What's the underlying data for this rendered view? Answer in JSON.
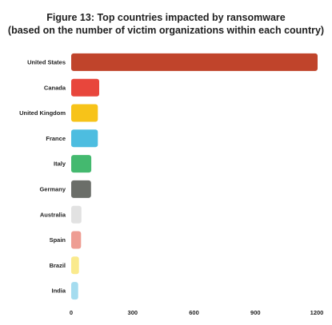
{
  "chart_data": {
    "type": "bar",
    "orientation": "horizontal",
    "title": "Figure 13: Top countries impacted by ransomware",
    "subtitle": "(based on the number of victim organizations within each country)",
    "categories": [
      "United States",
      "Canada",
      "United Kingdom",
      "France",
      "Italy",
      "Germany",
      "Australia",
      "Spain",
      "Brazil",
      "India"
    ],
    "values": [
      1220,
      137,
      130,
      130,
      98,
      97,
      50,
      48,
      38,
      34
    ],
    "colors": [
      "#c0442b",
      "#e8463c",
      "#f7c319",
      "#4dbde0",
      "#44b96f",
      "#6b6e69",
      "#e2e2e2",
      "#ee9d93",
      "#faea8d",
      "#a5dcef"
    ],
    "xlim": [
      0,
      1200
    ],
    "xticks": [
      0,
      300,
      600,
      900,
      1200
    ],
    "xlabel": "",
    "ylabel": "",
    "grid": false,
    "legend": "none"
  }
}
